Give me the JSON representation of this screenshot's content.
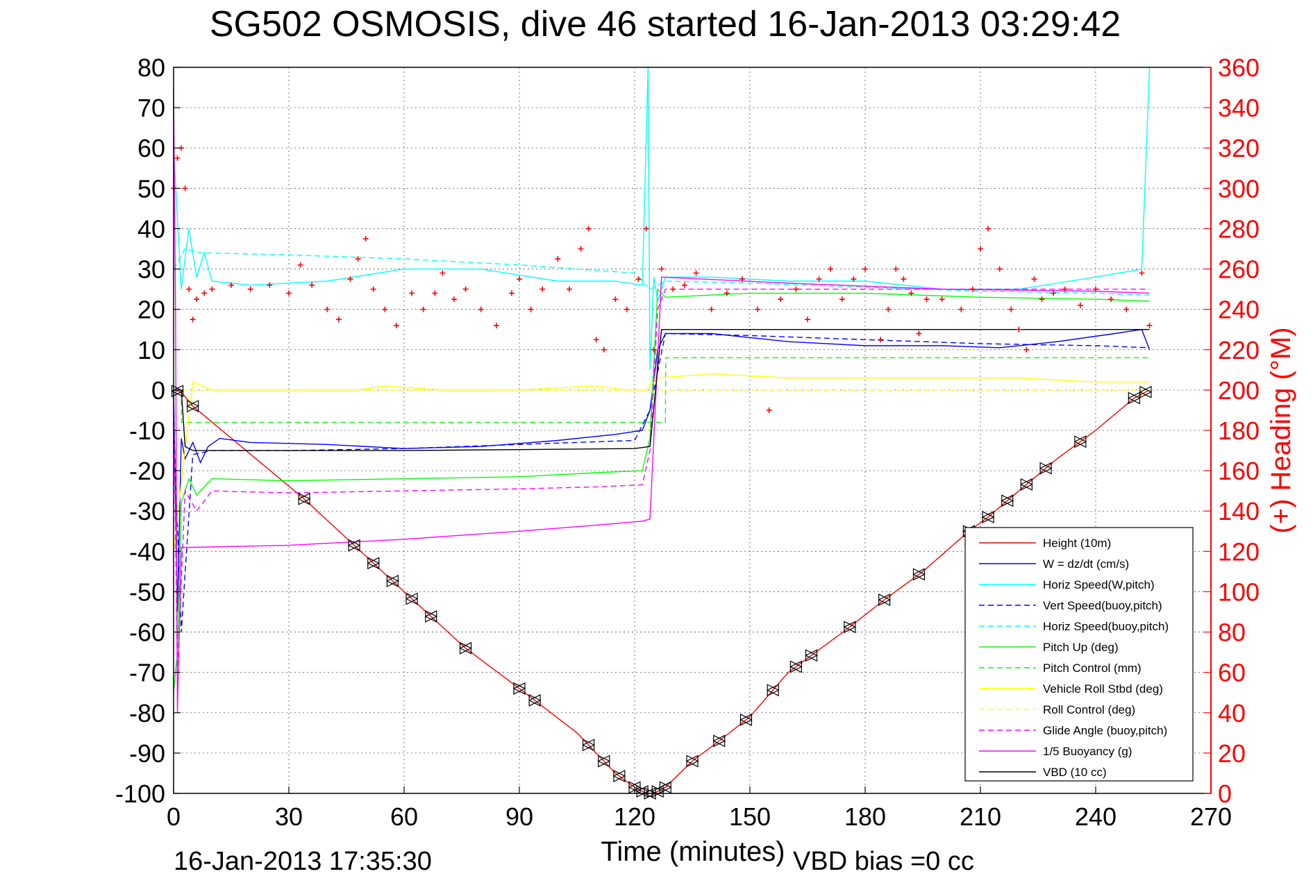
{
  "chart_data": {
    "type": "line",
    "title": "SG502 OSMOSIS, dive 46 started 16-Jan-2013 03:29:42",
    "xlabel": "Time (minutes)",
    "ylabel": "",
    "y2label": "(+) Heading (°M)",
    "footer_left": "16-Jan-2013 17:35:30",
    "footer_right": "VBD bias =0 cc",
    "xlim": [
      0,
      270
    ],
    "ylim": [
      -100,
      80
    ],
    "y2lim": [
      0,
      360
    ],
    "grid": true,
    "legend_position": "bottom-right",
    "xticks": [
      "0",
      "30",
      "60",
      "90",
      "120",
      "150",
      "180",
      "210",
      "240",
      "270"
    ],
    "yticks": [
      "80",
      "70",
      "60",
      "50",
      "40",
      "30",
      "20",
      "10",
      "0",
      "-10",
      "-20",
      "-30",
      "-40",
      "-50",
      "-60",
      "-70",
      "-80",
      "-90",
      "-100"
    ],
    "y2ticks": [
      "360",
      "340",
      "320",
      "300",
      "280",
      "260",
      "240",
      "220",
      "200",
      "180",
      "160",
      "140",
      "120",
      "100",
      "80",
      "60",
      "40",
      "20",
      "0"
    ],
    "colors": {
      "red": "#ff0000",
      "blue": "#0000ff",
      "cyan": "#00ffff",
      "green": "#00ff00",
      "yellow": "#ffff00",
      "magenta": "#ff00ff",
      "black": "#000000"
    },
    "series": [
      {
        "name": "Height (10m)",
        "color": "#ff0000",
        "dash": "solid",
        "axis": "left",
        "x": [
          0,
          2,
          5,
          34,
          47,
          60,
          76,
          90,
          105,
          115,
          120,
          123,
          125,
          128,
          135,
          142,
          150,
          160,
          175,
          185,
          195,
          207,
          212,
          220,
          230,
          240,
          250,
          254
        ],
        "y": [
          0,
          -0.5,
          -4,
          -27,
          -38.5,
          -50,
          -64,
          -74,
          -85,
          -95,
          -98.5,
          -100,
          -100,
          -98.5,
          -92,
          -87,
          -81,
          -70,
          -59.5,
          -52,
          -45,
          -35,
          -31.5,
          -25,
          -17,
          -10,
          -2,
          0
        ]
      },
      {
        "name": "W = dz/dt (cm/s)",
        "color": "#0000ff",
        "dash": "solid",
        "axis": "left",
        "x": [
          0,
          1,
          2,
          3,
          5,
          7,
          9,
          12,
          20,
          40,
          60,
          80,
          100,
          115,
          122,
          124,
          126,
          128,
          140,
          160,
          180,
          200,
          215,
          230,
          245,
          252,
          254
        ],
        "y": [
          0,
          -55,
          -12,
          -17,
          -13,
          -18,
          -14,
          -12,
          -13,
          -13.5,
          -14.5,
          -14,
          -12.5,
          -11,
          -10,
          -5,
          10,
          14,
          14,
          12,
          11,
          11,
          10.5,
          12,
          14,
          15,
          10
        ]
      },
      {
        "name": "Horiz Speed(W,pitch)",
        "color": "#00ffff",
        "dash": "solid",
        "axis": "left",
        "x": [
          0,
          2,
          4,
          6,
          8,
          10,
          20,
          40,
          60,
          80,
          100,
          115,
          122,
          123.5,
          124,
          125,
          126,
          128,
          140,
          160,
          180,
          200,
          220,
          240,
          252,
          254
        ],
        "y": [
          60,
          25,
          40,
          28,
          34,
          27,
          26,
          27,
          30,
          30,
          27,
          27,
          26,
          80,
          5,
          28,
          22,
          28,
          28,
          27,
          27,
          25,
          25,
          28,
          30,
          80
        ]
      },
      {
        "name": "Vert Speed(buoy,pitch)",
        "color": "#0000ff",
        "dash": "dashed",
        "axis": "left",
        "x": [
          0,
          2,
          5,
          10,
          30,
          60,
          90,
          120,
          124,
          128,
          150,
          180,
          210,
          240,
          254
        ],
        "y": [
          -8,
          -60,
          -16,
          -15,
          -15,
          -14.5,
          -13.5,
          -12.5,
          -5,
          14,
          13.5,
          12.5,
          11.5,
          11,
          10.5
        ]
      },
      {
        "name": "Horiz Speed(buoy,pitch)",
        "color": "#00ffff",
        "dash": "dashed",
        "axis": "left",
        "x": [
          0,
          3,
          7,
          30,
          60,
          90,
          120,
          124,
          128,
          150,
          180,
          210,
          240,
          254
        ],
        "y": [
          30,
          35,
          34,
          33.5,
          32.5,
          31,
          29,
          25,
          27,
          26.5,
          25.5,
          24.5,
          24,
          23.5
        ]
      },
      {
        "name": "Pitch Up (deg)",
        "color": "#00ff00",
        "dash": "solid",
        "axis": "left",
        "x": [
          0,
          1,
          2,
          4,
          6,
          10,
          30,
          60,
          90,
          110,
          122,
          124,
          126,
          128,
          150,
          180,
          210,
          240,
          254
        ],
        "y": [
          -75,
          -65,
          -28,
          -22,
          -26,
          -22,
          -22.5,
          -22,
          -21.5,
          -20.5,
          -20,
          -12,
          25,
          23,
          24,
          24,
          23,
          22.5,
          22
        ]
      },
      {
        "name": "Pitch Control (mm)",
        "color": "#00ff00",
        "dash": "dashed",
        "axis": "left",
        "x": [
          0,
          2,
          2.1,
          124,
          124.1,
          128,
          128.1,
          254
        ],
        "y": [
          0,
          0,
          -8,
          -8,
          -8,
          -8,
          8,
          8
        ]
      },
      {
        "name": "Vehicle Roll Stbd (deg)",
        "color": "#ffff00",
        "dash": "solid",
        "axis": "left",
        "x": [
          0,
          5,
          10,
          34,
          35,
          48,
          55,
          70,
          90,
          110,
          118,
          123,
          126,
          140,
          160,
          180,
          200,
          220,
          240,
          254
        ],
        "y": [
          -40,
          2,
          0,
          0,
          0,
          0,
          1,
          0,
          0,
          1,
          0,
          0,
          3,
          4,
          3,
          3,
          3,
          3,
          2,
          2
        ]
      },
      {
        "name": "Roll Control (deg)",
        "color": "#ffff00",
        "dash": "dashed",
        "axis": "left",
        "x": [
          0,
          2,
          5,
          30,
          60,
          90,
          110,
          123,
          126,
          150,
          180,
          210,
          240,
          254
        ],
        "y": [
          0,
          0,
          0,
          0,
          0,
          0,
          0,
          0,
          0,
          0,
          0,
          0,
          0,
          0
        ]
      },
      {
        "name": "Glide Angle (buoy,pitch)",
        "color": "#ff00ff",
        "dash": "dashed",
        "axis": "left",
        "x": [
          0,
          1,
          3,
          6,
          10,
          30,
          60,
          90,
          110,
          122,
          124,
          126,
          128,
          150,
          180,
          210,
          240,
          254
        ],
        "y": [
          0,
          -70,
          -25,
          -30,
          -25,
          -25.5,
          -25,
          -24.5,
          -24,
          -23.5,
          -15,
          20,
          25,
          25,
          25,
          25,
          25,
          25
        ]
      },
      {
        "name": "1/5 Buoyancy (g)",
        "color": "#ff00ff",
        "dash": "solid",
        "axis": "left",
        "x": [
          0,
          0.5,
          1,
          2,
          5,
          30,
          60,
          90,
          110,
          122,
          124,
          127,
          160,
          200,
          240,
          254
        ],
        "y": [
          75,
          20,
          -80,
          -39,
          -39,
          -38.5,
          -37,
          -35,
          -33.5,
          -32.5,
          -32,
          28,
          26.5,
          25,
          24.5,
          24
        ]
      },
      {
        "name": "VBD (10 cc)",
        "color": "#000000",
        "dash": "solid",
        "axis": "left",
        "x": [
          0,
          2,
          3,
          5,
          60,
          120,
          124,
          127,
          128,
          200,
          254
        ],
        "y": [
          0,
          0,
          -14,
          -15,
          -15,
          -14.5,
          -14,
          15,
          15,
          15,
          15
        ]
      },
      {
        "name": "Heading",
        "color": "#ff0000",
        "dash": "none",
        "axis": "right",
        "marker": "+",
        "x": [
          0,
          1,
          2,
          3,
          4,
          5,
          6,
          8,
          10,
          15,
          20,
          25,
          30,
          33,
          36,
          40,
          43,
          46,
          48,
          50,
          52,
          55,
          58,
          62,
          65,
          68,
          70,
          73,
          76,
          80,
          84,
          88,
          90,
          93,
          96,
          100,
          103,
          106,
          108,
          110,
          112,
          115,
          118,
          121,
          123,
          125,
          127,
          130,
          133,
          136,
          140,
          144,
          148,
          152,
          155,
          158,
          162,
          165,
          168,
          171,
          174,
          177,
          180,
          184,
          186,
          188,
          190,
          192,
          194,
          196,
          200,
          205,
          208,
          210,
          212,
          215,
          218,
          220,
          222,
          224,
          226,
          229,
          232,
          236,
          240,
          244,
          248,
          252,
          254
        ],
        "y": [
          300,
          315,
          320,
          300,
          250,
          235,
          245,
          248,
          250,
          252,
          250,
          252,
          248,
          262,
          252,
          240,
          235,
          255,
          265,
          275,
          250,
          240,
          232,
          248,
          240,
          248,
          258,
          245,
          250,
          240,
          232,
          248,
          255,
          240,
          250,
          265,
          250,
          270,
          280,
          225,
          220,
          245,
          240,
          255,
          280,
          220,
          260,
          250,
          252,
          258,
          240,
          248,
          255,
          240,
          190,
          245,
          250,
          235,
          255,
          260,
          245,
          255,
          260,
          225,
          240,
          260,
          255,
          248,
          228,
          245,
          245,
          240,
          250,
          270,
          280,
          260,
          240,
          230,
          220,
          255,
          245,
          248,
          250,
          242,
          250,
          245,
          240,
          258,
          232
        ]
      }
    ],
    "legend": [
      "Height (10m)",
      "W = dz/dt (cm/s)",
      "Horiz Speed(W,pitch)",
      "Vert Speed(buoy,pitch)",
      "Horiz Speed(buoy,pitch)",
      "Pitch Up (deg)",
      "Pitch Control (mm)",
      "Vehicle Roll Stbd (deg)",
      "Roll Control (deg)",
      "Glide Angle (buoy,pitch)",
      "1/5 Buoyancy (g)",
      "VBD (10 cc)"
    ],
    "depth_markers_x": [
      1,
      5,
      34,
      47,
      52,
      57,
      62,
      67,
      76,
      90,
      94,
      108,
      112,
      116,
      120,
      122,
      124,
      126,
      128,
      135,
      142,
      149,
      156,
      162,
      166,
      176,
      185,
      194,
      207,
      212,
      217,
      222,
      227,
      236,
      250,
      253
    ]
  }
}
